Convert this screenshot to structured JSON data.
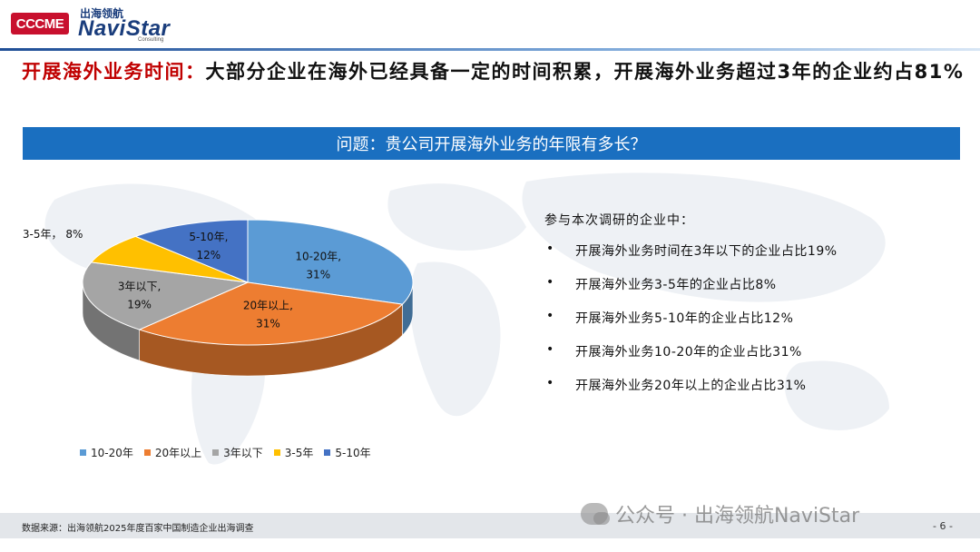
{
  "header": {
    "logo_left": "CCCME",
    "brand_cn": "出海领航",
    "brand_en": "NaviStar",
    "brand_sub": "Consulting"
  },
  "headline": {
    "highlight": "开展海外业务时间：",
    "body": "大部分企业在海外已经具备一定的时间积累，开展海外业务超过3年的企业约占81%"
  },
  "question": "问题：贵公司开展海外业务的年限有多长？",
  "chart_data": {
    "type": "pie",
    "style": "3d",
    "categories": [
      "10-20年",
      "20年以上",
      "3年以下",
      "3-5年",
      "5-10年"
    ],
    "values": [
      31,
      31,
      19,
      8,
      12
    ],
    "unit": "%",
    "colors": [
      "#5b9bd5",
      "#ed7d31",
      "#a5a5a5",
      "#ffc000",
      "#4472c4"
    ],
    "slice_labels": [
      {
        "name": "10-20年,",
        "value": "31%"
      },
      {
        "name": "20年以上,",
        "value": "31%"
      },
      {
        "name": "3年以下,",
        "value": "19%"
      },
      {
        "name": "3-5年，",
        "value": "8%"
      },
      {
        "name": "5-10年,",
        "value": "12%"
      }
    ],
    "legend": [
      "10-20年",
      "20年以上",
      "3年以下",
      "3-5年",
      "5-10年"
    ],
    "legend_position": "bottom"
  },
  "summary": {
    "intro": "参与本次调研的企业中：",
    "items": [
      "开展海外业务时间在3年以下的企业占比19%",
      "开展海外业务3-5年的企业占比8%",
      "开展海外业务5-10年的企业占比12%",
      "开展海外业务10-20年的企业占比31%",
      "开展海外业务20年以上的企业占比31%"
    ]
  },
  "footer": {
    "source": "数据来源：出海领航2025年度百家中国制造企业出海调查",
    "watermark": "公众号 · 出海领航NaviStar",
    "page": "- 6 -"
  }
}
